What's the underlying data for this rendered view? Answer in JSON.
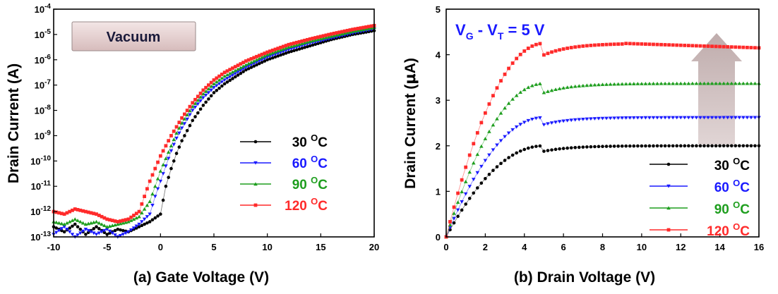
{
  "chart_data": [
    {
      "type": "scatter",
      "panel_label": "(a) Gate Voltage (V)",
      "ylabel": "Drain Current (A)",
      "xlim": [
        -10,
        20
      ],
      "ylim_log10": [
        -13,
        -4
      ],
      "yscale": "log",
      "x_ticks": [
        "-10",
        "-5",
        "0",
        "5",
        "10",
        "15",
        "20"
      ],
      "y_ticks": [
        {
          "base": "10",
          "exp": "-13"
        },
        {
          "base": "10",
          "exp": "-12"
        },
        {
          "base": "10",
          "exp": "-11"
        },
        {
          "base": "10",
          "exp": "-10"
        },
        {
          "base": "10",
          "exp": "-9"
        },
        {
          "base": "10",
          "exp": "-8"
        },
        {
          "base": "10",
          "exp": "-7"
        },
        {
          "base": "10",
          "exp": "-6"
        },
        {
          "base": "10",
          "exp": "-5"
        },
        {
          "base": "10",
          "exp": "-4"
        }
      ],
      "annotation": "Vacuum",
      "legend_position": "right",
      "series": [
        {
          "name": "30 °C",
          "label_num": "30",
          "label_sup": "O",
          "label_unit": "C",
          "color": "#000000",
          "points": [
            [
              -10,
              -12.6
            ],
            [
              -9,
              -12.8
            ],
            [
              -8,
              -12.5
            ],
            [
              -7,
              -12.9
            ],
            [
              -6,
              -12.6
            ],
            [
              -5,
              -12.9
            ],
            [
              -4,
              -12.7
            ],
            [
              -3,
              -12.8
            ],
            [
              -2,
              -12.6
            ],
            [
              -1,
              -12.4
            ],
            [
              0,
              -12.1
            ],
            [
              0.5,
              -11.0
            ],
            [
              1,
              -10.3
            ],
            [
              1.5,
              -9.7
            ],
            [
              2,
              -9.2
            ],
            [
              3,
              -8.4
            ],
            [
              4,
              -7.8
            ],
            [
              5,
              -7.3
            ],
            [
              6,
              -6.95
            ],
            [
              8,
              -6.4
            ],
            [
              10,
              -6.0
            ],
            [
              12,
              -5.7
            ],
            [
              14,
              -5.45
            ],
            [
              16,
              -5.2
            ],
            [
              18,
              -5.0
            ],
            [
              20,
              -4.85
            ]
          ]
        },
        {
          "name": "60 °C",
          "label_num": "60",
          "label_sup": "O",
          "label_unit": "C",
          "color": "#1a1aff",
          "points": [
            [
              -10,
              -12.9
            ],
            [
              -9,
              -12.6
            ],
            [
              -8,
              -13.0
            ],
            [
              -7,
              -12.7
            ],
            [
              -6,
              -12.9
            ],
            [
              -5,
              -12.7
            ],
            [
              -4,
              -13.0
            ],
            [
              -3,
              -12.8
            ],
            [
              -2,
              -12.5
            ],
            [
              -1,
              -12.1
            ],
            [
              -0.5,
              -11.4
            ],
            [
              0,
              -10.8
            ],
            [
              0.5,
              -10.2
            ],
            [
              1,
              -9.6
            ],
            [
              1.5,
              -9.1
            ],
            [
              2,
              -8.7
            ],
            [
              3,
              -8.0
            ],
            [
              4,
              -7.5
            ],
            [
              5,
              -7.1
            ],
            [
              6,
              -6.8
            ],
            [
              8,
              -6.3
            ],
            [
              10,
              -5.9
            ],
            [
              12,
              -5.6
            ],
            [
              14,
              -5.35
            ],
            [
              16,
              -5.15
            ],
            [
              18,
              -4.95
            ],
            [
              20,
              -4.78
            ]
          ]
        },
        {
          "name": "90 °C",
          "label_num": "90",
          "label_sup": "O",
          "label_unit": "C",
          "color": "#1e9e1e",
          "points": [
            [
              -10,
              -12.4
            ],
            [
              -9,
              -12.5
            ],
            [
              -8,
              -12.3
            ],
            [
              -7,
              -12.5
            ],
            [
              -6,
              -12.4
            ],
            [
              -5,
              -12.6
            ],
            [
              -4,
              -12.5
            ],
            [
              -3,
              -12.4
            ],
            [
              -2,
              -12.2
            ],
            [
              -1,
              -11.6
            ],
            [
              -0.5,
              -11.0
            ],
            [
              0,
              -10.4
            ],
            [
              0.5,
              -9.9
            ],
            [
              1,
              -9.4
            ],
            [
              1.5,
              -8.9
            ],
            [
              2,
              -8.5
            ],
            [
              3,
              -7.85
            ],
            [
              4,
              -7.35
            ],
            [
              5,
              -6.95
            ],
            [
              6,
              -6.65
            ],
            [
              8,
              -6.2
            ],
            [
              10,
              -5.8
            ],
            [
              12,
              -5.5
            ],
            [
              14,
              -5.27
            ],
            [
              16,
              -5.07
            ],
            [
              18,
              -4.88
            ],
            [
              20,
              -4.72
            ]
          ]
        },
        {
          "name": "120 °C",
          "label_num": "120",
          "label_sup": "O",
          "label_unit": "C",
          "color": "#ff2a2a",
          "points": [
            [
              -10,
              -12.0
            ],
            [
              -9,
              -12.1
            ],
            [
              -8,
              -11.9
            ],
            [
              -7,
              -12.0
            ],
            [
              -6,
              -12.1
            ],
            [
              -5,
              -12.3
            ],
            [
              -4,
              -12.4
            ],
            [
              -3,
              -12.3
            ],
            [
              -2,
              -12.0
            ],
            [
              -1.5,
              -11.4
            ],
            [
              -1,
              -10.8
            ],
            [
              -0.5,
              -10.3
            ],
            [
              0,
              -9.8
            ],
            [
              0.5,
              -9.4
            ],
            [
              1,
              -9.0
            ],
            [
              2,
              -8.3
            ],
            [
              3,
              -7.7
            ],
            [
              4,
              -7.2
            ],
            [
              5,
              -6.8
            ],
            [
              6,
              -6.5
            ],
            [
              8,
              -6.05
            ],
            [
              10,
              -5.7
            ],
            [
              12,
              -5.4
            ],
            [
              14,
              -5.18
            ],
            [
              16,
              -4.98
            ],
            [
              18,
              -4.8
            ],
            [
              20,
              -4.65
            ]
          ]
        }
      ]
    },
    {
      "type": "scatter",
      "panel_label": "(b) Drain Voltage (V)",
      "ylabel_text": "Drain Current (",
      "ylabel_greek": "μ",
      "ylabel_end": "A)",
      "xlim": [
        0,
        16
      ],
      "ylim": [
        0,
        5
      ],
      "x_ticks": [
        "0",
        "2",
        "4",
        "6",
        "8",
        "10",
        "12",
        "14",
        "16"
      ],
      "y_ticks": [
        "0",
        "1",
        "2",
        "3",
        "4",
        "5"
      ],
      "annotation_parts": [
        "V",
        "G",
        " - V",
        "T",
        " = 5 V"
      ],
      "legend_position": "bottom-right",
      "series": [
        {
          "name": "30 °C",
          "label_num": "30",
          "label_sup": "O",
          "label_unit": "C",
          "color": "#000000",
          "isat": 2.0
        },
        {
          "name": "60 °C",
          "label_num": "60",
          "label_sup": "O",
          "label_unit": "C",
          "color": "#1a1aff",
          "isat": 2.62
        },
        {
          "name": "90 °C",
          "label_num": "90",
          "label_sup": "O",
          "label_unit": "C",
          "color": "#1e9e1e",
          "isat": 3.37
        },
        {
          "name": "120 °C",
          "label_num": "120",
          "label_sup": "O",
          "label_unit": "C",
          "color": "#ff2a2a",
          "isat": 4.25,
          "end": 4.15
        }
      ]
    }
  ]
}
